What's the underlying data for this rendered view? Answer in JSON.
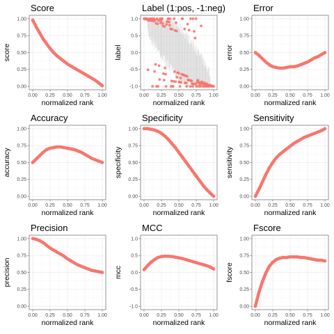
{
  "colors": {
    "series": "#F8766D",
    "band": "#bdbdbd"
  },
  "chart_data": [
    {
      "type": "line",
      "title": "Score",
      "xlabel": "normalized rank",
      "ylabel": "score",
      "xlim": [
        0,
        1
      ],
      "ylim": [
        0,
        1
      ],
      "xticks": [
        0,
        0.25,
        0.5,
        0.75,
        1
      ],
      "xtick_labels": [
        "0.00",
        "0.25",
        "0.50",
        "0.75",
        "1.00"
      ],
      "yticks": [
        0,
        0.25,
        0.5,
        0.75,
        1
      ],
      "ytick_labels": [
        "0.00",
        "0.25",
        "0.50",
        "0.75",
        "1.00"
      ],
      "x": [
        0,
        0.05,
        0.1,
        0.15,
        0.2,
        0.25,
        0.3,
        0.35,
        0.4,
        0.45,
        0.5,
        0.55,
        0.6,
        0.65,
        0.7,
        0.75,
        0.8,
        0.85,
        0.9,
        0.95,
        1.0
      ],
      "y": [
        0.98,
        0.88,
        0.79,
        0.7,
        0.63,
        0.56,
        0.5,
        0.45,
        0.41,
        0.37,
        0.33,
        0.3,
        0.27,
        0.24,
        0.21,
        0.18,
        0.15,
        0.12,
        0.09,
        0.05,
        0.01
      ]
    },
    {
      "type": "scatter",
      "title": "Label (1:pos, -1:neg)",
      "xlabel": "normalized rank",
      "ylabel": "label",
      "xlim": [
        0,
        1
      ],
      "ylim": [
        -1,
        1
      ],
      "xticks": [
        0,
        0.25,
        0.5,
        0.75,
        1
      ],
      "xtick_labels": [
        "0.00",
        "0.25",
        "0.50",
        "0.75",
        "1.00"
      ],
      "yticks": [
        -1,
        -0.5,
        0,
        0.5,
        1
      ],
      "ytick_labels": [
        "-1.0",
        "-0.5",
        "0.0",
        "0.5",
        "1.0"
      ],
      "point_values": [
        1,
        -1
      ],
      "band_range": [
        0.05,
        0.95
      ]
    },
    {
      "type": "line",
      "title": "Error",
      "xlabel": "normalized rank",
      "ylabel": "error",
      "xlim": [
        0,
        1
      ],
      "ylim": [
        0,
        1
      ],
      "xticks": [
        0,
        0.25,
        0.5,
        0.75,
        1
      ],
      "xtick_labels": [
        "0.00",
        "0.25",
        "0.50",
        "0.75",
        "1.00"
      ],
      "yticks": [
        0,
        0.25,
        0.5,
        0.75,
        1
      ],
      "ytick_labels": [
        "0.00",
        "0.25",
        "0.50",
        "0.75",
        "1.00"
      ],
      "x": [
        0,
        0.05,
        0.1,
        0.15,
        0.2,
        0.25,
        0.3,
        0.35,
        0.4,
        0.45,
        0.5,
        0.55,
        0.6,
        0.65,
        0.7,
        0.75,
        0.8,
        0.85,
        0.9,
        0.95,
        1.0
      ],
      "y": [
        0.5,
        0.46,
        0.41,
        0.36,
        0.32,
        0.29,
        0.28,
        0.27,
        0.27,
        0.28,
        0.29,
        0.29,
        0.3,
        0.32,
        0.34,
        0.36,
        0.39,
        0.42,
        0.44,
        0.47,
        0.5
      ]
    },
    {
      "type": "line",
      "title": "Accuracy",
      "xlabel": "normalized rank",
      "ylabel": "accuracy",
      "xlim": [
        0,
        1
      ],
      "ylim": [
        0,
        1
      ],
      "xticks": [
        0,
        0.25,
        0.5,
        0.75,
        1
      ],
      "xtick_labels": [
        "0.00",
        "0.25",
        "0.50",
        "0.75",
        "1.00"
      ],
      "yticks": [
        0,
        0.25,
        0.5,
        0.75,
        1
      ],
      "ytick_labels": [
        "0.00",
        "0.25",
        "0.50",
        "0.75",
        "1.00"
      ],
      "x": [
        0,
        0.05,
        0.1,
        0.15,
        0.2,
        0.25,
        0.3,
        0.35,
        0.4,
        0.45,
        0.5,
        0.55,
        0.6,
        0.65,
        0.7,
        0.75,
        0.8,
        0.85,
        0.9,
        0.95,
        1.0
      ],
      "y": [
        0.5,
        0.55,
        0.6,
        0.65,
        0.69,
        0.71,
        0.72,
        0.73,
        0.73,
        0.72,
        0.71,
        0.7,
        0.69,
        0.67,
        0.65,
        0.62,
        0.59,
        0.56,
        0.54,
        0.52,
        0.5
      ]
    },
    {
      "type": "line",
      "title": "Specificity",
      "xlabel": "normalized rank",
      "ylabel": "specificity",
      "xlim": [
        0,
        1
      ],
      "ylim": [
        0,
        1
      ],
      "xticks": [
        0,
        0.25,
        0.5,
        0.75,
        1
      ],
      "xtick_labels": [
        "0.00",
        "0.25",
        "0.50",
        "0.75",
        "1.00"
      ],
      "yticks": [
        0,
        0.25,
        0.5,
        0.75,
        1
      ],
      "ytick_labels": [
        "0.00",
        "0.25",
        "0.50",
        "0.75",
        "1.00"
      ],
      "x": [
        0,
        0.05,
        0.1,
        0.15,
        0.2,
        0.25,
        0.3,
        0.35,
        0.4,
        0.45,
        0.5,
        0.55,
        0.6,
        0.65,
        0.7,
        0.75,
        0.8,
        0.85,
        0.9,
        0.95,
        1.0
      ],
      "y": [
        1.0,
        1.0,
        0.99,
        0.98,
        0.96,
        0.93,
        0.89,
        0.84,
        0.78,
        0.72,
        0.65,
        0.58,
        0.51,
        0.44,
        0.37,
        0.3,
        0.23,
        0.16,
        0.1,
        0.05,
        0.0
      ]
    },
    {
      "type": "line",
      "title": "Sensitivity",
      "xlabel": "normalized rank",
      "ylabel": "sensitivity",
      "xlim": [
        0,
        1
      ],
      "ylim": [
        0,
        1
      ],
      "xticks": [
        0,
        0.25,
        0.5,
        0.75,
        1
      ],
      "xtick_labels": [
        "0.00",
        "0.25",
        "0.50",
        "0.75",
        "1.00"
      ],
      "yticks": [
        0,
        0.25,
        0.5,
        0.75,
        1
      ],
      "ytick_labels": [
        "0.00",
        "0.25",
        "0.50",
        "0.75",
        "1.00"
      ],
      "x": [
        0,
        0.05,
        0.1,
        0.15,
        0.2,
        0.25,
        0.3,
        0.35,
        0.4,
        0.45,
        0.5,
        0.55,
        0.6,
        0.65,
        0.7,
        0.75,
        0.8,
        0.85,
        0.9,
        0.95,
        1.0
      ],
      "y": [
        0.0,
        0.1,
        0.21,
        0.32,
        0.42,
        0.5,
        0.57,
        0.62,
        0.66,
        0.7,
        0.74,
        0.78,
        0.81,
        0.84,
        0.87,
        0.89,
        0.91,
        0.93,
        0.95,
        0.97,
        1.0
      ]
    },
    {
      "type": "line",
      "title": "Precision",
      "xlabel": "normalized rank",
      "ylabel": "precision",
      "xlim": [
        0,
        1
      ],
      "ylim": [
        0,
        1
      ],
      "xticks": [
        0,
        0.25,
        0.5,
        0.75,
        1
      ],
      "xtick_labels": [
        "0.00",
        "0.25",
        "0.50",
        "0.75",
        "1.00"
      ],
      "yticks": [
        0,
        0.25,
        0.5,
        0.75,
        1
      ],
      "ytick_labels": [
        "0.00",
        "0.25",
        "0.50",
        "0.75",
        "1.00"
      ],
      "x": [
        0,
        0.05,
        0.1,
        0.15,
        0.2,
        0.25,
        0.3,
        0.35,
        0.4,
        0.45,
        0.5,
        0.55,
        0.6,
        0.65,
        0.7,
        0.75,
        0.8,
        0.85,
        0.9,
        0.95,
        1.0
      ],
      "y": [
        1.0,
        0.99,
        0.97,
        0.94,
        0.9,
        0.86,
        0.83,
        0.8,
        0.77,
        0.74,
        0.7,
        0.67,
        0.64,
        0.61,
        0.59,
        0.57,
        0.55,
        0.53,
        0.52,
        0.51,
        0.5
      ]
    },
    {
      "type": "line",
      "title": "MCC",
      "xlabel": "normalized rank",
      "ylabel": "mcc",
      "xlim": [
        0,
        1
      ],
      "ylim": [
        -1,
        1
      ],
      "xticks": [
        0,
        0.25,
        0.5,
        0.75,
        1
      ],
      "xtick_labels": [
        "0.00",
        "0.25",
        "0.50",
        "0.75",
        "1.00"
      ],
      "yticks": [
        -1,
        -0.5,
        0,
        0.5,
        1
      ],
      "ytick_labels": [
        "-1.0",
        "-0.5",
        "0.0",
        "0.5",
        "1.0"
      ],
      "x": [
        0,
        0.05,
        0.1,
        0.15,
        0.2,
        0.25,
        0.3,
        0.35,
        0.4,
        0.45,
        0.5,
        0.55,
        0.6,
        0.65,
        0.7,
        0.75,
        0.8,
        0.85,
        0.9,
        0.95,
        1.0
      ],
      "y": [
        0.08,
        0.2,
        0.3,
        0.38,
        0.44,
        0.47,
        0.48,
        0.48,
        0.47,
        0.45,
        0.43,
        0.41,
        0.38,
        0.35,
        0.32,
        0.29,
        0.26,
        0.23,
        0.2,
        0.16,
        0.1
      ]
    },
    {
      "type": "line",
      "title": "Fscore",
      "xlabel": "normalized rank",
      "ylabel": "fscore",
      "xlim": [
        0,
        1
      ],
      "ylim": [
        0,
        1
      ],
      "xticks": [
        0,
        0.25,
        0.5,
        0.75,
        1
      ],
      "xtick_labels": [
        "0.00",
        "0.25",
        "0.50",
        "0.75",
        "1.00"
      ],
      "yticks": [
        0,
        0.25,
        0.5,
        0.75,
        1
      ],
      "ytick_labels": [
        "0.00",
        "0.25",
        "0.50",
        "0.75",
        "1.00"
      ],
      "x": [
        0,
        0.05,
        0.1,
        0.15,
        0.2,
        0.25,
        0.3,
        0.35,
        0.4,
        0.45,
        0.5,
        0.55,
        0.6,
        0.65,
        0.7,
        0.75,
        0.8,
        0.85,
        0.9,
        0.95,
        1.0
      ],
      "y": [
        0.0,
        0.2,
        0.36,
        0.49,
        0.59,
        0.65,
        0.69,
        0.71,
        0.72,
        0.72,
        0.73,
        0.73,
        0.73,
        0.72,
        0.72,
        0.71,
        0.7,
        0.69,
        0.68,
        0.68,
        0.67
      ]
    }
  ]
}
